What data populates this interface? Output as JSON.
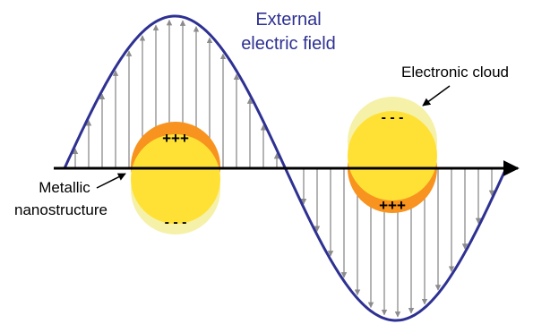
{
  "labels": {
    "field_line1": "External",
    "field_line2": "electric field",
    "cloud": "Electronic cloud",
    "nano_line1": "Metallic",
    "nano_line2": "nanostructure",
    "plus_left": "+++",
    "minus_left": "- - -",
    "minus_right": "- - -",
    "plus_right": "+++"
  },
  "colors": {
    "wave": "#2e3192",
    "field_text": "#2e3192",
    "field_arrows": "#8c8c8c",
    "axis": "#000000",
    "nanoparticle": "#f7931e",
    "electron_cloud": "#fff200",
    "electron_cloud_faint": "#f4ee9a"
  }
}
